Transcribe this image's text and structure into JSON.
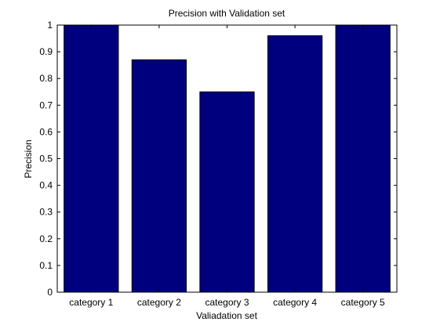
{
  "chart_data": {
    "type": "bar",
    "title": "Precision with Validation set",
    "xlabel": "Valiadation set",
    "ylabel": "Precision",
    "categories": [
      "category 1",
      "category 2",
      "category 3",
      "category 4",
      "category 5"
    ],
    "values": [
      1.0,
      0.87,
      0.75,
      0.96,
      1.0
    ],
    "ylim": [
      0,
      1
    ],
    "yticks": [
      "0",
      "0.1",
      "0.2",
      "0.3",
      "0.4",
      "0.5",
      "0.6",
      "0.7",
      "0.8",
      "0.9",
      "1"
    ],
    "grid": false,
    "legend": "none",
    "colors": {
      "bar": "#00007f",
      "bar_edge": "#000000",
      "axes": "#000000",
      "background": "#ffffff"
    }
  }
}
